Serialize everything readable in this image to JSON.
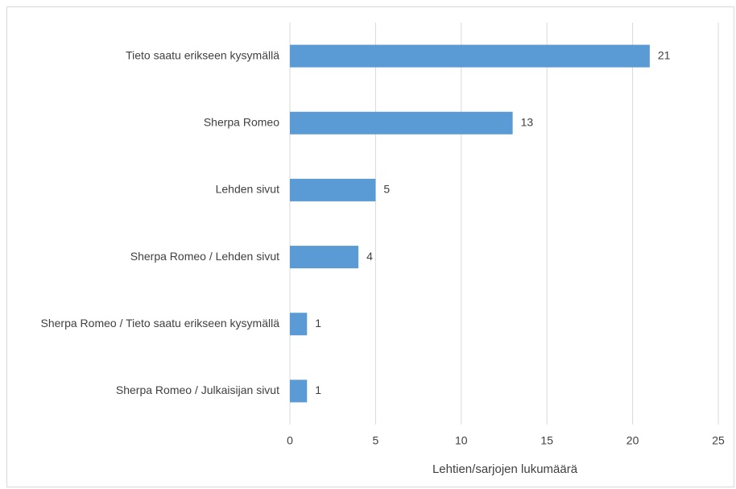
{
  "chart_data": {
    "type": "bar",
    "orientation": "horizontal",
    "x_label": "Lehtien/sarjojen lukumäärä",
    "categories": [
      "Tieto saatu erikseen kysymällä",
      "Sherpa Romeo",
      "Lehden sivut",
      "Sherpa Romeo / Lehden sivut",
      "Sherpa Romeo / Tieto saatu erikseen kysymällä",
      "Sherpa Romeo / Julkaisijan sivut"
    ],
    "values": [
      21,
      13,
      5,
      4,
      1,
      1
    ],
    "color": "#5b9bd5",
    "xlim": [
      0,
      25
    ],
    "xticks": [
      0,
      5,
      10,
      15,
      20,
      25
    ],
    "grid": true,
    "data_labels": true
  }
}
